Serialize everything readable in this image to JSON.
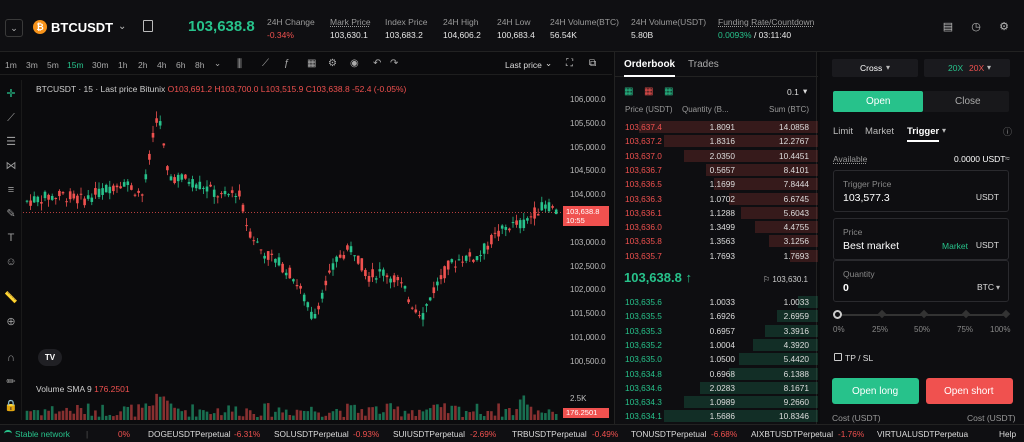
{
  "header": {
    "symbol": "BTCUSDT",
    "last_price": "103,638.8",
    "stats": [
      {
        "label": "24H Change",
        "value": "-0.34%"
      },
      {
        "label": "Mark Price",
        "value": "103,630.1"
      },
      {
        "label": "Index Price",
        "value": "103,683.2"
      },
      {
        "label": "24H High",
        "value": "104,606.2"
      },
      {
        "label": "24H Low",
        "value": "100,683.4"
      },
      {
        "label": "24H Volume(BTC)",
        "value": "56.54K"
      },
      {
        "label": "24H Volume(USDT)",
        "value": "5.80B"
      },
      {
        "label": "Funding Rate/Countdown",
        "value_rate": "0.0093%",
        "value_countdown": "/ 03:11:40"
      }
    ]
  },
  "chart_toolbar": {
    "timeframes": [
      "1m",
      "3m",
      "5m",
      "15m",
      "30m",
      "1h",
      "2h",
      "4h",
      "6h",
      "8h"
    ],
    "active": "15m",
    "last_price_label": "Last price"
  },
  "chart": {
    "title_prefix": "BTCUSDT · 15 · Last price Bitunix",
    "o": "O103,691.2",
    "h": "H103,700.0",
    "l": "L103,515.9",
    "c": "C103,638.8",
    "chg": "-52.4 (-0.05%)",
    "price_ticks": [
      "106,000.0",
      "105,500.0",
      "105,000.0",
      "104,500.0",
      "104,000.0",
      "103,500.0",
      "103,000.0",
      "102,500.0",
      "102,000.0",
      "101,500.0",
      "101,000.0",
      "100,500.0"
    ],
    "price_tag": "103,638.8",
    "price_tag_time": "10:55",
    "vol_label": "Volume SMA 9",
    "vol_value": "176.2501",
    "vol_tick": "2.5K",
    "vol_tag": "176.2501",
    "tv": "TV"
  },
  "orderbook": {
    "tab_orderbook": "Orderbook",
    "tab_trades": "Trades",
    "precision": "0.1",
    "head_price": "Price (USDT)",
    "head_qty": "Quantity (B...",
    "head_sum": "Sum (BTC)",
    "asks": [
      {
        "p": "103,637.4",
        "q": "1.8091",
        "s": "14.0858",
        "d": 0.88
      },
      {
        "p": "103,637.2",
        "q": "1.8316",
        "s": "12.2767",
        "d": 0.76
      },
      {
        "p": "103,637.0",
        "q": "2.0350",
        "s": "10.4451",
        "d": 0.66
      },
      {
        "p": "103,636.7",
        "q": "0.5657",
        "s": "8.4101",
        "d": 0.55
      },
      {
        "p": "103,636.5",
        "q": "1.1699",
        "s": "7.8444",
        "d": 0.51
      },
      {
        "p": "103,636.3",
        "q": "1.0702",
        "s": "6.6745",
        "d": 0.44
      },
      {
        "p": "103,636.1",
        "q": "1.1288",
        "s": "5.6043",
        "d": 0.38
      },
      {
        "p": "103,636.0",
        "q": "1.3499",
        "s": "4.4755",
        "d": 0.31
      },
      {
        "p": "103,635.8",
        "q": "1.3563",
        "s": "3.1256",
        "d": 0.24
      },
      {
        "p": "103,635.7",
        "q": "1.7693",
        "s": "1.7693",
        "d": 0.14
      }
    ],
    "mid_price": "103,638.8 ↑",
    "mark_small": "103,630.1",
    "bids": [
      {
        "p": "103,635.6",
        "q": "1.0033",
        "s": "1.0033",
        "d": 0.1
      },
      {
        "p": "103,635.5",
        "q": "1.6926",
        "s": "2.6959",
        "d": 0.2
      },
      {
        "p": "103,635.3",
        "q": "0.6957",
        "s": "3.3916",
        "d": 0.26
      },
      {
        "p": "103,635.2",
        "q": "1.0004",
        "s": "4.3920",
        "d": 0.32
      },
      {
        "p": "103,635.0",
        "q": "1.0500",
        "s": "5.4420",
        "d": 0.39
      },
      {
        "p": "103,634.8",
        "q": "0.6968",
        "s": "6.1388",
        "d": 0.44
      },
      {
        "p": "103,634.6",
        "q": "2.0283",
        "s": "8.1671",
        "d": 0.58
      },
      {
        "p": "103,634.3",
        "q": "1.0989",
        "s": "9.2660",
        "d": 0.66
      },
      {
        "p": "103,634.1",
        "q": "1.5686",
        "s": "10.8346",
        "d": 0.76
      }
    ]
  },
  "trade": {
    "margin_mode": "Cross",
    "lev_long": "20X",
    "lev_short": "20X",
    "open": "Open",
    "close": "Close",
    "order_types": [
      "Limit",
      "Market",
      "Trigger"
    ],
    "available_label": "Available",
    "available_value": "0.0000 USDT",
    "trigger_label": "Trigger Price",
    "trigger_value": "103,577.3",
    "trigger_unit": "USDT",
    "price_label": "Price",
    "price_value": "Best market",
    "price_tag": "Market",
    "price_unit": "USDT",
    "qty_label": "Quantity",
    "qty_value": "0",
    "qty_unit": "BTC",
    "slider": [
      "0%",
      "25%",
      "50%",
      "75%",
      "100%"
    ],
    "tpsl": "TP / SL",
    "open_long": "Open long",
    "open_short": "Open short",
    "cost_long": "Cost (USDT)",
    "cost_short": "Cost (USDT)"
  },
  "status": {
    "network": "Stable network",
    "tickers": [
      {
        "pre": "",
        ".": "",
        "s": "",
        "c": "0%"
      },
      {
        "s": "DOGEUSDTPerpetual",
        "c": "-6.31%"
      },
      {
        "s": "SOLUSDTPerpetual",
        "c": "-0.93%"
      },
      {
        "s": "SUIUSDTPerpetual",
        "c": "-2.69%"
      },
      {
        "s": "TRBUSDTPerpetual",
        "c": "-0.49%"
      },
      {
        "s": "TONUSDTPerpetual",
        "c": "-6.68%"
      },
      {
        "s": "AIXBTUSDTPerpetual",
        "c": "-1.76%"
      },
      {
        "s": "VIRTUALUSDTPerpetua",
        "c": ""
      }
    ],
    "help": "Help"
  }
}
